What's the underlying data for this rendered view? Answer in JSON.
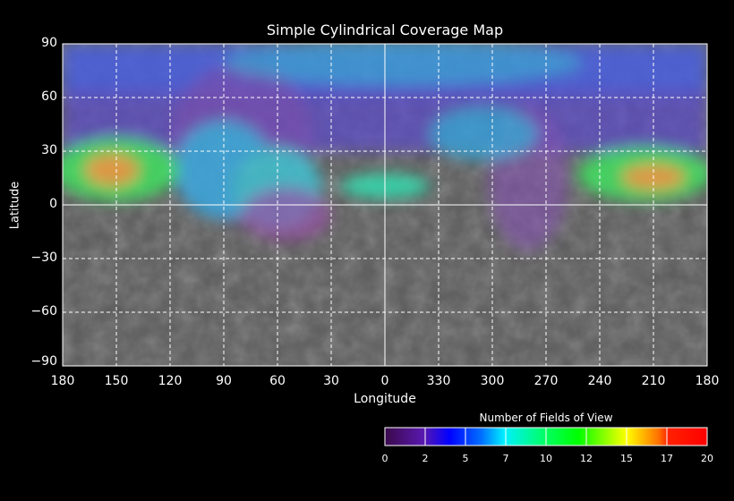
{
  "title": "Simple Cylindrical Coverage Map",
  "x_axis": {
    "label": "Longitude",
    "ticks": [
      "180",
      "150",
      "120",
      "90",
      "60",
      "30",
      "0",
      "330",
      "300",
      "270",
      "240",
      "210",
      "180"
    ]
  },
  "y_axis": {
    "label": "Latitude",
    "ticks": [
      "90",
      "60",
      "30",
      "0",
      "−30",
      "−60",
      "−90"
    ]
  },
  "colorbar": {
    "title": "Number of Fields of View",
    "ticks": [
      "0",
      "2",
      "5",
      "7",
      "10",
      "12",
      "15",
      "17",
      "20"
    ],
    "range": [
      0,
      20
    ],
    "colors": [
      "#3a0a5a",
      "#5a1aa8",
      "#0000ff",
      "#00a0ff",
      "#00ffd0",
      "#00ff40",
      "#40ff00",
      "#ffff00",
      "#ffa000",
      "#ff6000",
      "#ff0000"
    ]
  },
  "colors": {
    "background": "#000000",
    "grid": "#ffffff",
    "basemap": "#5a5a5a"
  }
}
